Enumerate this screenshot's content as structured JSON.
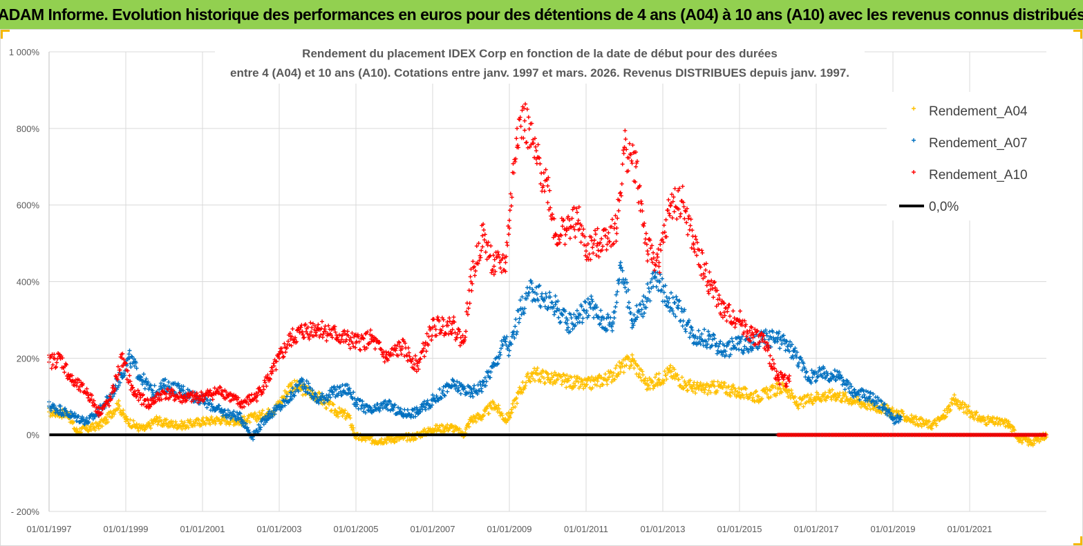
{
  "header": {
    "banner_title": "ADAM Informe. Evolution historique des performances en euros pour des détentions de 4 ans (A04) à 10 ans (A10) avec les revenus connus distribués"
  },
  "colors": {
    "banner": "#92d050",
    "A04": "#ffc000",
    "A07": "#0070c0",
    "A10": "#ff0000",
    "zero": "#000000",
    "grid": "#d9d9d9"
  },
  "chart_data": {
    "type": "scatter",
    "title_line1": "Rendement du placement IDEX Corp en fonction de la date de début pour des durées",
    "title_line2": "entre 4 (A04) et 10 ans (A10).  Cotations entre janv. 1997 et mars. 2026. Revenus DISTRIBUES depuis janv. 1997.",
    "xlabel": "",
    "ylabel": "",
    "x_range": [
      1997.0,
      2023.0
    ],
    "ylim": [
      -200,
      1000
    ],
    "grid": true,
    "y_ticks": [
      {
        "value": 1000,
        "label": "1 000%"
      },
      {
        "value": 800,
        "label": "800%"
      },
      {
        "value": 600,
        "label": "600%"
      },
      {
        "value": 400,
        "label": "400%"
      },
      {
        "value": 200,
        "label": "200%"
      },
      {
        "value": 0,
        "label": "0%"
      },
      {
        "value": -200,
        "label": "- 200%"
      }
    ],
    "x_ticks": [
      {
        "value": 1997,
        "label": "01/01/1997"
      },
      {
        "value": 1999,
        "label": "01/01/1999"
      },
      {
        "value": 2001,
        "label": "01/01/2001"
      },
      {
        "value": 2003,
        "label": "01/01/2003"
      },
      {
        "value": 2005,
        "label": "01/01/2005"
      },
      {
        "value": 2007,
        "label": "01/01/2007"
      },
      {
        "value": 2009,
        "label": "01/01/2009"
      },
      {
        "value": 2011,
        "label": "01/01/2011"
      },
      {
        "value": 2013,
        "label": "01/01/2013"
      },
      {
        "value": 2015,
        "label": "01/01/2015"
      },
      {
        "value": 2017,
        "label": "01/01/2017"
      },
      {
        "value": 2019,
        "label": "01/01/2019"
      },
      {
        "value": 2021,
        "label": "01/01/2021"
      }
    ],
    "legend_position": "top-right",
    "series": [
      {
        "name": "Rendement_A04",
        "color_key": "A04",
        "marker": "+",
        "x": [
          1997.0,
          1997.5,
          1997.7,
          1998.0,
          1998.3,
          1998.5,
          1998.8,
          1999.0,
          1999.3,
          1999.5,
          1999.8,
          2000.0,
          2000.5,
          2001.0,
          2001.5,
          2002.0,
          2002.5,
          2002.8,
          2003.0,
          2003.3,
          2003.6,
          2004.0,
          2004.5,
          2004.8,
          2005.0,
          2005.5,
          2006.0,
          2006.5,
          2007.0,
          2007.5,
          2007.8,
          2008.0,
          2008.3,
          2008.6,
          2008.9,
          2009.0,
          2009.3,
          2009.6,
          2010.0,
          2010.5,
          2011.0,
          2011.3,
          2011.6,
          2011.9,
          2012.2,
          2012.6,
          2012.9,
          2013.2,
          2013.6,
          2014.0,
          2014.5,
          2015.0,
          2015.5,
          2016.0,
          2016.2,
          2016.5,
          2017.0,
          2017.5,
          2018.0,
          2018.5,
          2019.0,
          2019.5,
          2020.0,
          2020.3,
          2020.6,
          2021.0,
          2021.3,
          2021.6,
          2022.0,
          2022.3,
          2022.6,
          2023.0
        ],
        "y": [
          60,
          55,
          10,
          15,
          25,
          40,
          80,
          40,
          20,
          15,
          40,
          30,
          25,
          35,
          40,
          35,
          50,
          60,
          80,
          130,
          120,
          100,
          60,
          50,
          -5,
          -15,
          -10,
          -5,
          15,
          20,
          0,
          40,
          50,
          80,
          40,
          50,
          120,
          160,
          150,
          140,
          130,
          140,
          150,
          175,
          195,
          130,
          145,
          165,
          130,
          120,
          125,
          110,
          100,
          120,
          125,
          80,
          100,
          105,
          90,
          75,
          60,
          40,
          25,
          45,
          90,
          60,
          40,
          35,
          30,
          -10,
          -20,
          0
        ]
      },
      {
        "name": "Rendement_A07",
        "color_key": "A07",
        "marker": "+",
        "x": [
          1997.0,
          1997.3,
          1997.6,
          1998.0,
          1998.3,
          1998.6,
          1998.9,
          1999.1,
          1999.4,
          1999.7,
          2000.0,
          2000.5,
          2001.0,
          2001.5,
          2002.0,
          2002.3,
          2002.7,
          2003.0,
          2003.3,
          2003.6,
          2004.0,
          2004.4,
          2004.8,
          2005.0,
          2005.4,
          2005.8,
          2006.2,
          2006.6,
          2007.0,
          2007.5,
          2007.8,
          2008.0,
          2008.3,
          2008.6,
          2008.9,
          2009.0,
          2009.3,
          2009.6,
          2009.9,
          2010.2,
          2010.5,
          2010.8,
          2011.1,
          2011.4,
          2011.7,
          2011.9,
          2012.2,
          2012.5,
          2012.8,
          2013.1,
          2013.4,
          2013.8,
          2014.2,
          2014.6,
          2015.0,
          2015.3,
          2015.6,
          2016.0,
          2016.4,
          2016.8,
          2017.2,
          2017.6,
          2018.0,
          2018.4,
          2018.8,
          2019.0,
          2019.2
        ],
        "y": [
          75,
          65,
          50,
          35,
          60,
          100,
          160,
          200,
          150,
          110,
          130,
          115,
          90,
          60,
          45,
          -5,
          50,
          70,
          100,
          140,
          90,
          110,
          120,
          85,
          60,
          80,
          55,
          60,
          90,
          130,
          120,
          110,
          130,
          180,
          250,
          220,
          330,
          380,
          350,
          340,
          290,
          310,
          340,
          300,
          290,
          450,
          300,
          340,
          410,
          360,
          330,
          260,
          250,
          220,
          240,
          230,
          250,
          250,
          220,
          150,
          160,
          150,
          110,
          100,
          70,
          40,
          40
        ]
      },
      {
        "name": "Rendement_A10",
        "color_key": "A10",
        "marker": "+",
        "x": [
          1997.0,
          1997.3,
          1997.6,
          1998.0,
          1998.3,
          1998.6,
          1998.9,
          1999.2,
          1999.6,
          2000.0,
          2000.5,
          2001.0,
          2001.5,
          2002.0,
          2002.4,
          2002.8,
          2003.0,
          2003.3,
          2003.6,
          2004.0,
          2004.5,
          2005.0,
          2005.4,
          2005.8,
          2006.2,
          2006.6,
          2007.0,
          2007.5,
          2007.8,
          2008.0,
          2008.3,
          2008.6,
          2008.9,
          2009.0,
          2009.2,
          2009.4,
          2009.7,
          2010.0,
          2010.2,
          2010.5,
          2010.8,
          2011.0,
          2011.3,
          2011.5,
          2011.8,
          2012.0,
          2012.3,
          2012.6,
          2012.9,
          2013.2,
          2013.5,
          2013.8,
          2014.2,
          2014.6,
          2015.0,
          2015.3,
          2015.6,
          2016.0,
          2016.3
        ],
        "y": [
          190,
          200,
          140,
          110,
          60,
          90,
          200,
          110,
          80,
          110,
          95,
          100,
          115,
          80,
          100,
          160,
          200,
          250,
          270,
          280,
          260,
          240,
          250,
          200,
          230,
          180,
          280,
          290,
          240,
          400,
          520,
          440,
          450,
          560,
          800,
          820,
          720,
          650,
          520,
          540,
          560,
          480,
          500,
          520,
          540,
          750,
          700,
          480,
          450,
          600,
          610,
          500,
          400,
          320,
          300,
          260,
          250,
          150,
          140
        ]
      },
      {
        "name": "0,0%",
        "color_key": "zero",
        "marker": "line",
        "x": [
          1997.0,
          2023.0
        ],
        "y": [
          0,
          0
        ]
      }
    ]
  }
}
